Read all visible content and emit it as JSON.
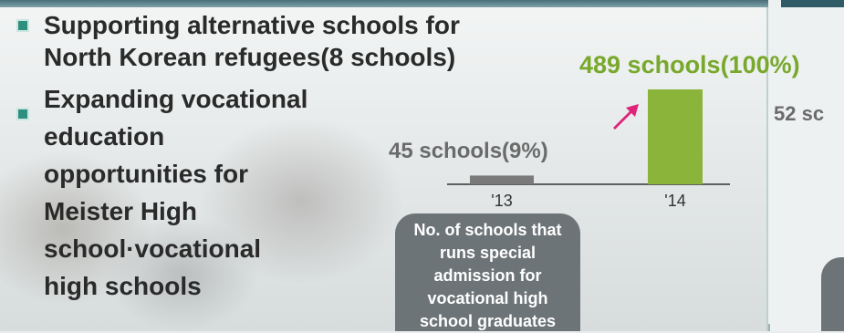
{
  "bullets": [
    {
      "lines": [
        "Supporting alternative schools for",
        "North Korean refugees(8 schools)"
      ]
    },
    {
      "lines": [
        "Expanding vocational",
        "education",
        "opportunities for",
        "Meister High",
        "school·vocational",
        "high schools"
      ]
    }
  ],
  "chart_data": {
    "type": "bar",
    "categories": [
      "'13",
      "'14"
    ],
    "values": [
      45,
      489
    ],
    "data_labels": [
      "45 schools(9%)",
      "489 schools(100%)"
    ],
    "title": "No. of schools that runs special admission for vocational high school graduates",
    "colors": {
      "bar_2013": "#7a7a7a",
      "bar_2014": "#8bb43a",
      "arrow": "#e0237b"
    }
  },
  "right_panel": {
    "label": "52 sc"
  }
}
